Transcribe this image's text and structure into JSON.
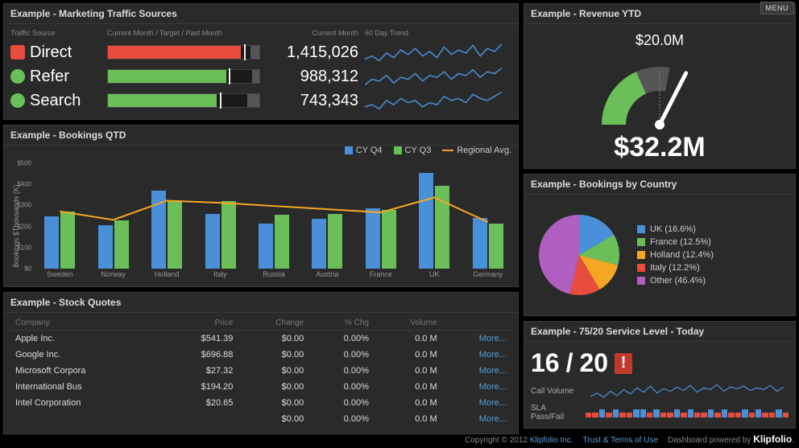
{
  "menu_label": "MENU",
  "colors": {
    "blue": "#4a90d9",
    "green": "#6bbf59",
    "orange": "#f5a623",
    "red": "#e74c3c",
    "purple": "#b05fc1",
    "panel_bg": "#2a2a2a",
    "accent_link": "#5a9fd4"
  },
  "traffic": {
    "title": "Example - Marketing Traffic Sources",
    "headers": {
      "source": "Traffic Source",
      "bar": "Current Month / Target / Past Month",
      "cm": "Current Month",
      "trend": "60 Day Trend"
    },
    "rows": [
      {
        "label": "Direct",
        "swatch": "#e74c3c",
        "shape": "square",
        "fill_pct": 88,
        "past_pct": 6,
        "fill_color": "#e74c3c",
        "value": "1,415,026"
      },
      {
        "label": "Refer",
        "swatch": "#6bbf59",
        "shape": "circle",
        "fill_pct": 78,
        "past_pct": 5,
        "fill_color": "#6bbf59",
        "value": "988,312"
      },
      {
        "label": "Search",
        "swatch": "#6bbf59",
        "shape": "circle",
        "fill_pct": 72,
        "past_pct": 8,
        "fill_color": "#6bbf59",
        "value": "743,343"
      }
    ],
    "spark_stroke": "#4a90d9",
    "spark_series": [
      [
        12,
        14,
        11,
        16,
        13,
        18,
        15,
        19,
        14,
        17,
        13,
        20,
        15,
        18,
        16,
        21,
        14,
        19,
        17,
        22
      ],
      [
        10,
        13,
        12,
        15,
        11,
        14,
        13,
        16,
        12,
        15,
        14,
        17,
        13,
        16,
        15,
        18,
        14,
        17,
        16,
        19
      ],
      [
        11,
        12,
        10,
        14,
        12,
        15,
        13,
        14,
        11,
        13,
        12,
        16,
        14,
        15,
        13,
        17,
        15,
        14,
        16,
        18
      ]
    ]
  },
  "qtd": {
    "title": "Example - Bookings QTD",
    "y_label": "Bookings $Thousands (K)",
    "y_ticks": [
      "$0",
      "$100",
      "$200",
      "$300",
      "$400",
      "$500"
    ],
    "ylim": [
      0,
      500
    ],
    "legend": {
      "q4": "CY Q4",
      "q3": "CY Q3",
      "avg": "Regional Avg."
    },
    "colors": {
      "q4": "#4a90d9",
      "q3": "#6bbf59",
      "avg": "#f5a623"
    },
    "categories": [
      "Sweden",
      "Norway",
      "Holland",
      "Italy",
      "Russia",
      "Austria",
      "France",
      "UK",
      "Germany"
    ],
    "q4": [
      250,
      205,
      370,
      260,
      215,
      235,
      285,
      455,
      240
    ],
    "q3": [
      270,
      230,
      320,
      320,
      255,
      260,
      280,
      395,
      215
    ],
    "avg": [
      275,
      235,
      325,
      315,
      300,
      285,
      270,
      340,
      225
    ]
  },
  "stocks": {
    "title": "Example - Stock Quotes",
    "columns": [
      "Company",
      "Price",
      "Change",
      "% Chg",
      "Volume",
      ""
    ],
    "more_label": "More...",
    "rows": [
      {
        "company": "Apple Inc.",
        "price": "$541.39",
        "change": "$0.00",
        "pct": "0.00%",
        "vol": "0.0 M"
      },
      {
        "company": "Google Inc.",
        "price": "$696.88",
        "change": "$0.00",
        "pct": "0.00%",
        "vol": "0.0 M"
      },
      {
        "company": "Microsoft Corpora",
        "price": "$27.32",
        "change": "$0.00",
        "pct": "0.00%",
        "vol": "0.0 M"
      },
      {
        "company": "International Bus",
        "price": "$194.20",
        "change": "$0.00",
        "pct": "0.00%",
        "vol": "0.0 M"
      },
      {
        "company": "Intel Corporation",
        "price": "$20.65",
        "change": "$0.00",
        "pct": "0.00%",
        "vol": "0.0 M"
      },
      {
        "company": "",
        "price": "",
        "change": "$0.00",
        "pct": "0.00%",
        "vol": "0.0 M"
      }
    ]
  },
  "revenue": {
    "title": "Example - Revenue YTD",
    "target": "$20.0M",
    "value": "$32.2M",
    "gauge": {
      "arc_color": "#6bbf59",
      "bg_arc": "#555",
      "needle_angle_deg": 65
    }
  },
  "pie": {
    "title": "Example - Bookings by Country",
    "slices": [
      {
        "label": "UK (16.6%)",
        "pct": 16.6,
        "color": "#4a90d9"
      },
      {
        "label": "France (12.5%)",
        "pct": 12.5,
        "color": "#6bbf59"
      },
      {
        "label": "Holland (12.4%)",
        "pct": 12.4,
        "color": "#f5a623"
      },
      {
        "label": "Italy (12.2%)",
        "pct": 12.2,
        "color": "#e74c3c"
      },
      {
        "label": "Other (46.4%)",
        "pct": 46.4,
        "color": "#b05fc1"
      }
    ]
  },
  "svc": {
    "title": "Example - 75/20 Service Level - Today",
    "numerator": "16",
    "denominator": "20",
    "alert": "!",
    "call_label": "Call Volume",
    "sla_label": "SLA Pass/Fail",
    "call_series": [
      8,
      12,
      7,
      14,
      9,
      16,
      11,
      18,
      13,
      20,
      12,
      17,
      14,
      19,
      15,
      21,
      13,
      18,
      16,
      22,
      14,
      19,
      17,
      20,
      15,
      18,
      16,
      21,
      14,
      19
    ],
    "sla_series": [
      0,
      0,
      1,
      0,
      1,
      0,
      0,
      1,
      1,
      0,
      1,
      0,
      0,
      1,
      0,
      1,
      0,
      0,
      1,
      0,
      1,
      0,
      0,
      1,
      0,
      1,
      0,
      0,
      1,
      0
    ],
    "call_color": "#4a90d9",
    "sla_pass": "#4a90d9",
    "sla_fail": "#e74c3c"
  },
  "footer": {
    "copyright": "Copyright © 2012",
    "company": "Klipfolio Inc.",
    "terms": "Trust & Terms of Use",
    "powered": "Dashboard powered by",
    "brand": "Klipfolio"
  }
}
